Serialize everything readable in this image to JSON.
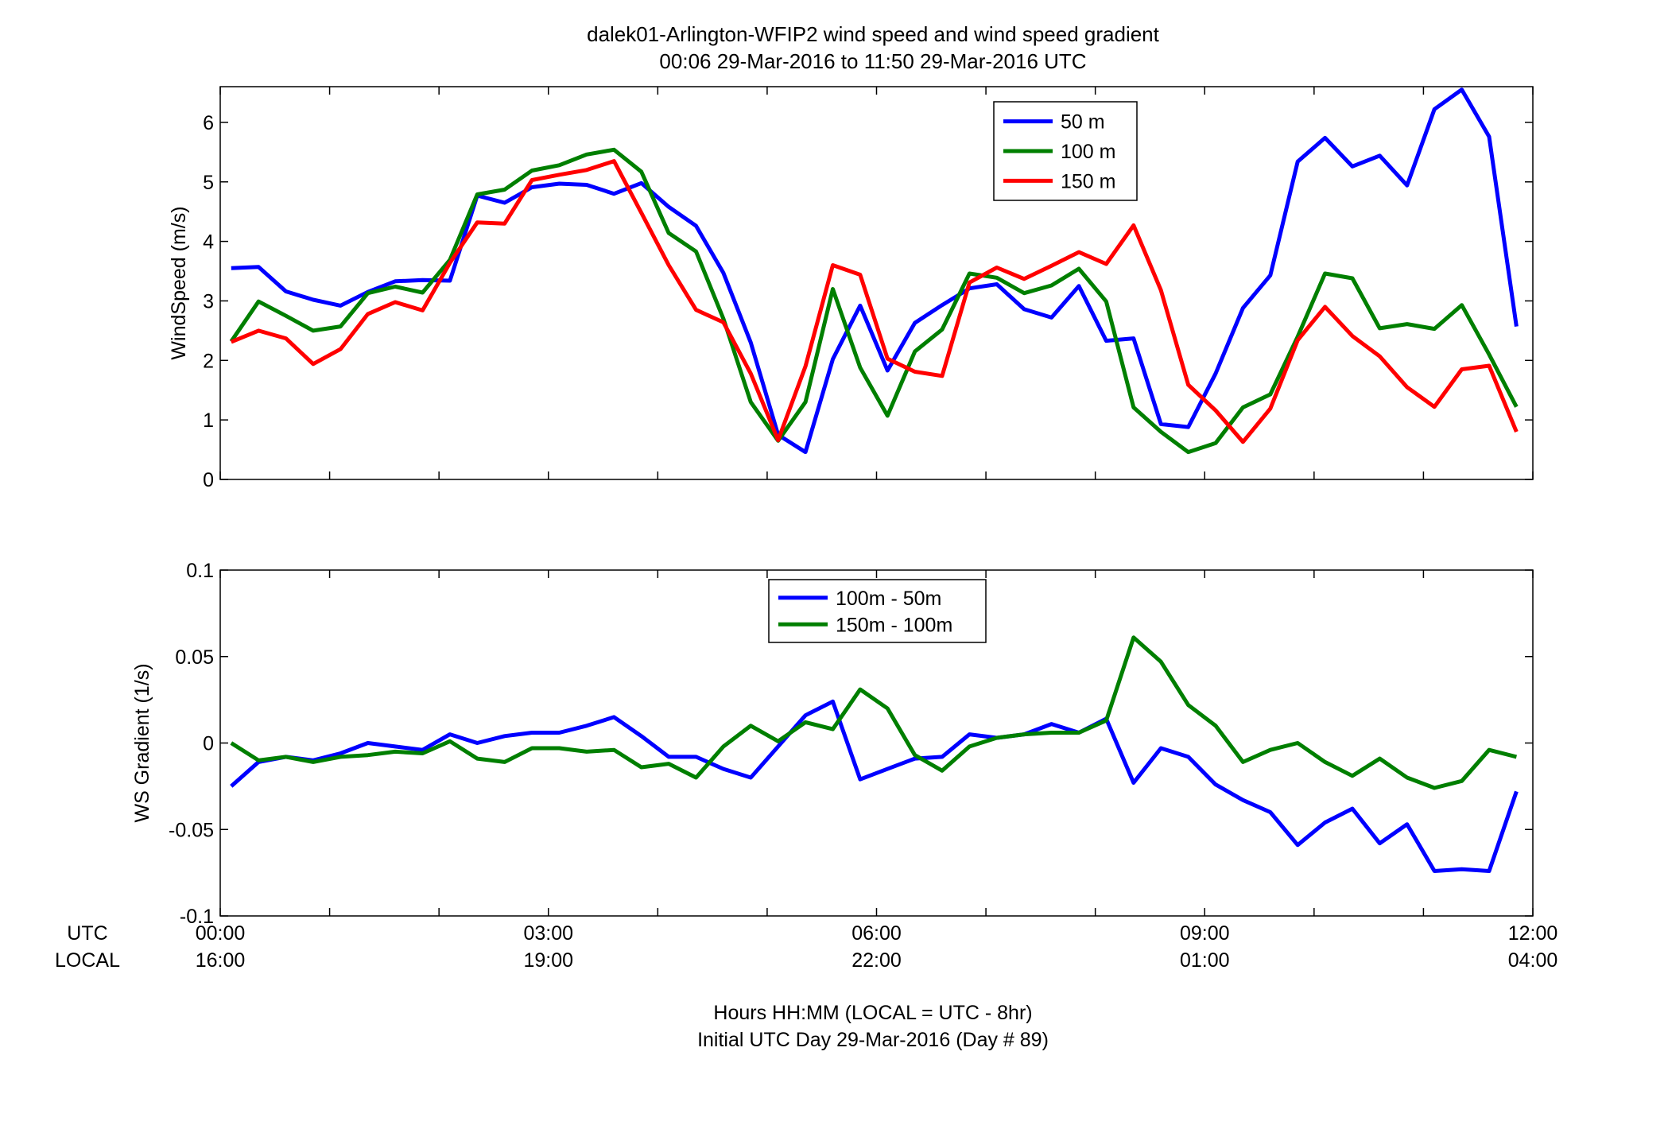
{
  "figure": {
    "title_line1": "dalek01-Arlington-WFIP2  wind speed and wind speed gradient",
    "title_line2": "00:06 29-Mar-2016 to 11:50 29-Mar-2016  UTC",
    "xlabel_line1": "Hours HH:MM  (LOCAL = UTC - 8hr)",
    "xlabel_line2": "Initial UTC Day 29-Mar-2016 (Day # 89)",
    "row_label_utc": "UTC",
    "row_label_local": "LOCAL"
  },
  "chart_data": [
    {
      "type": "line",
      "ylabel": "WindSpeed (m/s)",
      "ylim": [
        0,
        6.6
      ],
      "yticks": [
        0,
        1,
        2,
        3,
        4,
        5,
        6
      ],
      "xlim": [
        0,
        12
      ],
      "grid": false,
      "legend_position": "top-center",
      "x_hours": [
        0.1,
        0.35,
        0.6,
        0.85,
        1.1,
        1.35,
        1.6,
        1.85,
        2.1,
        2.35,
        2.6,
        2.85,
        3.1,
        3.35,
        3.6,
        3.85,
        4.1,
        4.35,
        4.6,
        4.85,
        5.1,
        5.35,
        5.6,
        5.85,
        6.1,
        6.35,
        6.6,
        6.85,
        7.1,
        7.35,
        7.6,
        7.85,
        8.1,
        8.35,
        8.6,
        8.85,
        9.1,
        9.35,
        9.6,
        9.85,
        10.1,
        10.35,
        10.6,
        10.85,
        11.1,
        11.35,
        11.6,
        11.85
      ],
      "series": [
        {
          "name": "50 m",
          "color": "#0000ff",
          "values": [
            3.55,
            3.57,
            3.16,
            3.02,
            2.92,
            3.15,
            3.33,
            3.35,
            3.34,
            4.77,
            4.65,
            4.91,
            4.97,
            4.95,
            4.8,
            4.98,
            4.58,
            4.26,
            3.47,
            2.3,
            0.75,
            0.46,
            2.02,
            2.92,
            1.83,
            2.63,
            2.93,
            3.21,
            3.28,
            2.86,
            2.72,
            3.25,
            2.33,
            2.37,
            0.93,
            0.88,
            1.78,
            2.88,
            3.43,
            5.34,
            5.74,
            5.26,
            5.44,
            4.94,
            6.22,
            6.55,
            5.76,
            2.57
          ]
        },
        {
          "name": "100 m",
          "color": "#007f00",
          "values": [
            2.32,
            2.99,
            2.75,
            2.5,
            2.57,
            3.13,
            3.24,
            3.14,
            3.69,
            4.79,
            4.87,
            5.19,
            5.28,
            5.46,
            5.54,
            5.17,
            4.14,
            3.83,
            2.7,
            1.3,
            0.65,
            1.3,
            3.2,
            1.88,
            1.07,
            2.15,
            2.52,
            3.46,
            3.39,
            3.13,
            3.26,
            3.54,
            2.99,
            1.21,
            0.8,
            0.46,
            0.61,
            1.21,
            1.43,
            2.4,
            3.46,
            3.38,
            2.54,
            2.61,
            2.53,
            2.93,
            2.1,
            1.22
          ]
        },
        {
          "name": "150 m",
          "color": "#ff0000",
          "values": [
            2.31,
            2.5,
            2.37,
            1.94,
            2.19,
            2.78,
            2.98,
            2.84,
            3.64,
            4.32,
            4.3,
            5.03,
            5.12,
            5.2,
            5.35,
            4.48,
            3.6,
            2.85,
            2.64,
            1.78,
            0.66,
            1.9,
            3.6,
            3.44,
            2.03,
            1.81,
            1.74,
            3.31,
            3.56,
            3.37,
            3.59,
            3.82,
            3.62,
            4.27,
            3.18,
            1.59,
            1.16,
            0.63,
            1.19,
            2.34,
            2.9,
            2.41,
            2.07,
            1.55,
            1.22,
            1.85,
            1.91,
            0.8
          ]
        }
      ]
    },
    {
      "type": "line",
      "ylabel": "WS Gradient (1/s)",
      "ylim": [
        -0.1,
        0.1
      ],
      "yticks": [
        -0.1,
        -0.05,
        0,
        0.05,
        0.1
      ],
      "ytick_labels": [
        "-0.1",
        "-0.05",
        "0",
        "0.05",
        "0.1"
      ],
      "xlim": [
        0,
        12
      ],
      "xticks": [
        0,
        3,
        6,
        9,
        12
      ],
      "xtick_labels_utc": [
        "00:00",
        "03:00",
        "06:00",
        "09:00",
        "12:00"
      ],
      "xtick_labels_local": [
        "16:00",
        "19:00",
        "22:00",
        "01:00",
        "04:00"
      ],
      "grid": false,
      "legend_position": "top-center",
      "x_hours": [
        0.1,
        0.35,
        0.6,
        0.85,
        1.1,
        1.35,
        1.6,
        1.85,
        2.1,
        2.35,
        2.6,
        2.85,
        3.1,
        3.35,
        3.6,
        3.85,
        4.1,
        4.35,
        4.6,
        4.85,
        5.1,
        5.35,
        5.6,
        5.85,
        6.1,
        6.35,
        6.6,
        6.85,
        7.1,
        7.35,
        7.6,
        7.85,
        8.1,
        8.35,
        8.6,
        8.85,
        9.1,
        9.35,
        9.6,
        9.85,
        10.1,
        10.35,
        10.6,
        10.85,
        11.1,
        11.35,
        11.6,
        11.85
      ],
      "series": [
        {
          "name": "100m - 50m",
          "color": "#0000ff",
          "values": [
            -0.025,
            -0.011,
            -0.008,
            -0.01,
            -0.006,
            0.0,
            -0.002,
            -0.004,
            0.005,
            0.0,
            0.004,
            0.006,
            0.006,
            0.01,
            0.015,
            0.004,
            -0.008,
            -0.008,
            -0.015,
            -0.02,
            -0.002,
            0.016,
            0.024,
            -0.021,
            -0.015,
            -0.009,
            -0.008,
            0.005,
            0.003,
            0.005,
            0.011,
            0.006,
            0.014,
            -0.023,
            -0.003,
            -0.008,
            -0.024,
            -0.033,
            -0.04,
            -0.059,
            -0.046,
            -0.038,
            -0.058,
            -0.047,
            -0.074,
            -0.073,
            -0.074,
            -0.028
          ]
        },
        {
          "name": "150m - 100m",
          "color": "#007f00",
          "values": [
            0.0,
            -0.01,
            -0.008,
            -0.011,
            -0.008,
            -0.007,
            -0.005,
            -0.006,
            0.001,
            -0.009,
            -0.011,
            -0.003,
            -0.003,
            -0.005,
            -0.004,
            -0.014,
            -0.012,
            -0.02,
            -0.002,
            0.01,
            0.001,
            0.012,
            0.008,
            0.031,
            0.02,
            -0.007,
            -0.016,
            -0.002,
            0.003,
            0.005,
            0.006,
            0.006,
            0.013,
            0.061,
            0.047,
            0.022,
            0.01,
            -0.011,
            -0.004,
            0.0,
            -0.011,
            -0.019,
            -0.009,
            -0.02,
            -0.026,
            -0.022,
            -0.004,
            -0.008
          ]
        }
      ]
    }
  ]
}
